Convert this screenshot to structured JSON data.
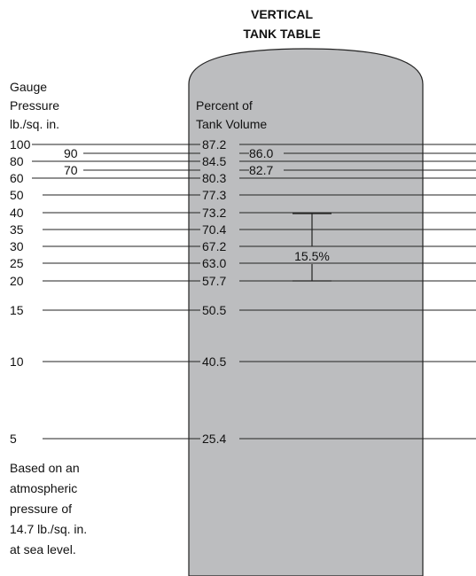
{
  "title": [
    "VERTICAL",
    "TANK TABLE"
  ],
  "left_header": [
    "Gauge",
    "Pressure",
    "lb./sq. in."
  ],
  "tank_header": [
    "Percent of",
    "Tank Volume"
  ],
  "footnote": [
    "Based on an",
    "atmospheric",
    "pressure of",
    "14.7 lb./sq. in.",
    "at sea level."
  ],
  "rows": [
    {
      "pressure": "100",
      "percent": "87.2"
    },
    {
      "pressure": "80",
      "percent": "84.5"
    },
    {
      "pressure": "60",
      "percent": "80.3"
    },
    {
      "pressure": "50",
      "percent": "77.3"
    },
    {
      "pressure": "40",
      "percent": "73.2"
    },
    {
      "pressure": "35",
      "percent": "70.4"
    },
    {
      "pressure": "30",
      "percent": "67.2"
    },
    {
      "pressure": "25",
      "percent": "63.0"
    },
    {
      "pressure": "20",
      "percent": "57.7"
    },
    {
      "pressure": "15",
      "percent": "50.5"
    },
    {
      "pressure": "10",
      "percent": "40.5"
    },
    {
      "pressure": "5",
      "percent": "25.4"
    }
  ],
  "intermediate_rows": [
    {
      "pressure": "90",
      "percent": "86.0"
    },
    {
      "pressure": "70",
      "percent": "82.7"
    }
  ],
  "range_bracket": {
    "label": "15.5%",
    "from_pressure": "40",
    "to_pressure": "20"
  },
  "colors": {
    "tank_fill": "#bcbdbf",
    "line": "#222222",
    "text": "#111111",
    "background": "#ffffff"
  }
}
